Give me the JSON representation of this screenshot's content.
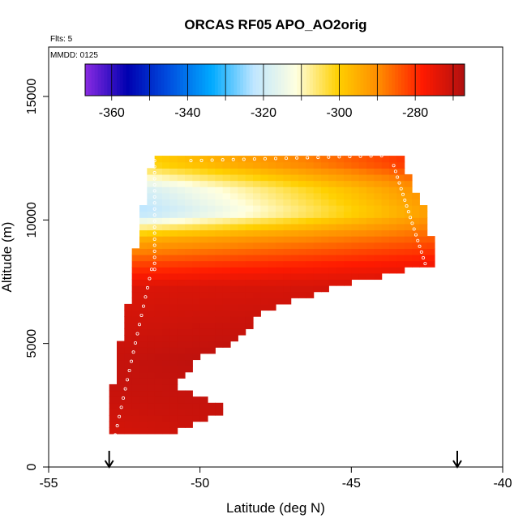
{
  "chart_data": {
    "type": "heatmap",
    "title": "ORCAS RF05 APO_AO2orig",
    "annotations": {
      "flights": "Flts: 5",
      "date": "MMDD: 0125"
    },
    "xlabel": "Latitude (deg N)",
    "ylabel": "Altitude (m)",
    "xlim": [
      -55,
      -40
    ],
    "ylim": [
      0,
      17000
    ],
    "x_ticks": [
      -55,
      -50,
      -45,
      -40
    ],
    "y_ticks": [
      0,
      5000,
      10000,
      15000
    ],
    "x_tick_labels": [
      "-55",
      "-50",
      "-45",
      "-40"
    ],
    "y_tick_labels": [
      "0",
      "5000",
      "10000",
      "15000"
    ],
    "grid": false,
    "colorbar": {
      "range": [
        -367,
        -267
      ],
      "ticks": [
        -360,
        -340,
        -320,
        -300,
        -280
      ],
      "tick_labels": [
        "-360",
        "-340",
        "-320",
        "-300",
        "-280"
      ],
      "placement": "top inside plot",
      "colors": [
        "#8a2be2",
        "#0000b0",
        "#0050e0",
        "#00aaff",
        "#bfe6ff",
        "#ffffe0",
        "#ffd000",
        "#ff8800",
        "#ff1a00",
        "#b01010"
      ]
    },
    "arrows_lat": [
      -53,
      -41.5
    ],
    "profiles": [
      {
        "lat_start": -52.8,
        "lat_end": -51.6,
        "alt_start": 1300,
        "alt_end": 8000
      },
      {
        "lat_start": -51.5,
        "lat_end": -51.5,
        "alt_start": 8000,
        "alt_end": 12400
      },
      {
        "lat_start": -50.3,
        "lat_end": -44.0,
        "alt_start": 12400,
        "alt_end": 12600
      },
      {
        "lat_start": -43.6,
        "lat_end": -42.5,
        "alt_start": 12200,
        "alt_end": 8000
      }
    ],
    "field_description_rows": [
      {
        "alt": 12300,
        "lat_min": -51.6,
        "lat_max": -43.4,
        "apo_left": -300,
        "apo_right": -281
      },
      {
        "alt": 11300,
        "lat_min": -51.8,
        "lat_max": -43.1,
        "apo_left": -318,
        "apo_right": -291
      },
      {
        "alt": 10300,
        "lat_min": -51.9,
        "lat_max": -42.6,
        "apo_left": -323,
        "apo_right": -293
      },
      {
        "alt": 9300,
        "lat_min": -52.0,
        "lat_max": -42.5,
        "apo_left": -296,
        "apo_right": -285
      },
      {
        "alt": 8300,
        "lat_min": -52.3,
        "lat_max": -42.2,
        "apo_left": -283,
        "apo_right": -277
      },
      {
        "alt": 7300,
        "lat_min": -52.3,
        "lat_max": -45.6,
        "apo_left": -273,
        "apo_right": -272
      },
      {
        "alt": 6300,
        "lat_min": -52.4,
        "lat_max": -48.2,
        "apo_left": -272,
        "apo_right": -271
      },
      {
        "alt": 5300,
        "lat_min": -52.6,
        "lat_max": -48.7,
        "apo_left": -271,
        "apo_right": -270
      },
      {
        "alt": 4300,
        "lat_min": -52.7,
        "lat_max": -50.3,
        "apo_left": -270,
        "apo_right": -269
      },
      {
        "alt": 3300,
        "lat_min": -52.9,
        "lat_max": -50.9,
        "apo_left": -270,
        "apo_right": -270
      },
      {
        "alt": 2300,
        "lat_min": -52.9,
        "lat_max": -49.2,
        "apo_left": -271,
        "apo_right": -270
      },
      {
        "alt": 1500,
        "lat_min": -53.1,
        "lat_max": -50.9,
        "apo_left": -272,
        "apo_right": -271
      }
    ]
  }
}
